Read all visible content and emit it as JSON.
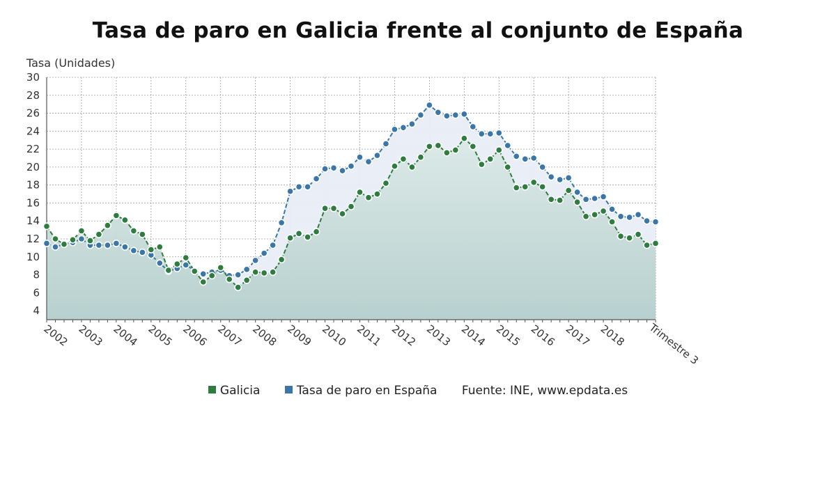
{
  "chart_data": {
    "type": "line",
    "title": "Tasa de paro en Galicia frente al conjunto de España",
    "ylabel": "Tasa (Unidades)",
    "xlabel": "Trimestre 3",
    "ylim": [
      3,
      30
    ],
    "yticks": [
      4,
      6,
      8,
      10,
      12,
      14,
      16,
      18,
      20,
      22,
      24,
      26,
      28,
      30
    ],
    "xticks": [
      "2002",
      "2003",
      "2004",
      "2005",
      "2006",
      "2007",
      "2008",
      "2009",
      "2010",
      "2011",
      "2012",
      "2013",
      "2014",
      "2015",
      "2016",
      "2017",
      "2018"
    ],
    "grid": true,
    "legend_position": "bottom",
    "series": [
      {
        "name": "Galicia",
        "color": "#2e7d3e",
        "values": [
          13.4,
          12.0,
          11.4,
          11.9,
          12.9,
          11.8,
          12.5,
          13.5,
          14.6,
          14.1,
          12.9,
          12.5,
          10.8,
          11.1,
          8.5,
          9.2,
          9.9,
          8.4,
          7.2,
          7.9,
          8.8,
          7.5,
          6.6,
          7.4,
          8.3,
          8.2,
          8.3,
          9.7,
          12.1,
          12.6,
          12.2,
          12.8,
          15.4,
          15.4,
          14.8,
          15.6,
          17.2,
          16.6,
          17.0,
          18.2,
          20.1,
          20.9,
          20.0,
          21.1,
          22.3,
          22.4,
          21.6,
          21.9,
          23.2,
          22.3,
          20.3,
          20.9,
          21.9,
          20.0,
          17.7,
          17.8,
          18.3,
          17.8,
          16.4,
          16.3,
          17.4,
          16.1,
          14.5,
          14.7,
          15.1,
          13.9,
          12.3,
          12.1,
          12.5,
          11.3,
          11.5
        ]
      },
      {
        "name": "Tasa de paro en España",
        "color": "#3a77a8",
        "values": [
          11.5,
          11.1,
          11.4,
          11.6,
          12.0,
          11.3,
          11.3,
          11.3,
          11.5,
          11.1,
          10.7,
          10.5,
          10.2,
          9.3,
          8.4,
          8.7,
          9.1,
          8.5,
          8.1,
          8.3,
          8.5,
          7.9,
          8.0,
          8.6,
          9.6,
          10.4,
          11.3,
          13.8,
          17.3,
          17.8,
          17.8,
          18.7,
          19.8,
          19.9,
          19.6,
          20.1,
          21.1,
          20.6,
          21.3,
          22.6,
          24.2,
          24.4,
          24.8,
          25.8,
          26.9,
          26.1,
          25.7,
          25.8,
          25.9,
          24.5,
          23.7,
          23.7,
          23.8,
          22.4,
          21.2,
          20.9,
          21.0,
          20.0,
          18.9,
          18.6,
          18.8,
          17.2,
          16.4,
          16.5,
          16.7,
          15.3,
          14.5,
          14.4,
          14.7,
          14.0,
          13.9
        ]
      }
    ],
    "source_label": "Fuente: INE, www.epdata.es"
  }
}
